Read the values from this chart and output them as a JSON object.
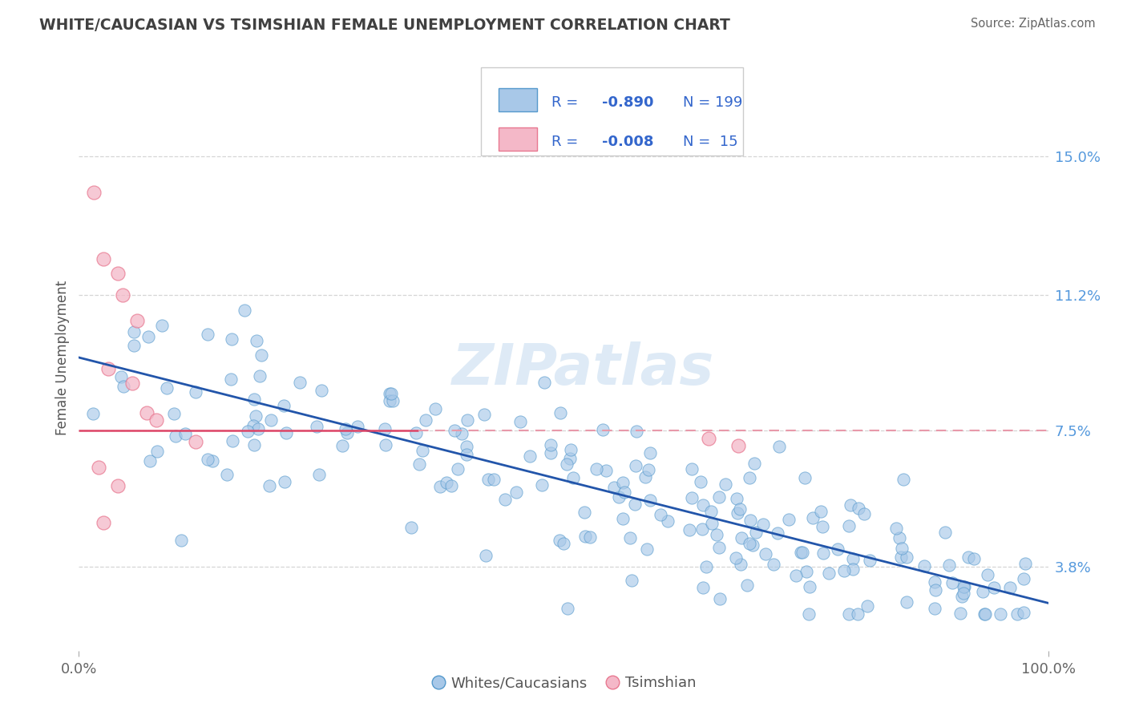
{
  "title": "WHITE/CAUCASIAN VS TSIMSHIAN FEMALE UNEMPLOYMENT CORRELATION CHART",
  "source": "Source: ZipAtlas.com",
  "ylabel": "Female Unemployment",
  "ytick_labels": [
    "3.8%",
    "7.5%",
    "11.2%",
    "15.0%"
  ],
  "ytick_values": [
    3.8,
    7.5,
    11.2,
    15.0
  ],
  "xtick_labels": [
    "0.0%",
    "100.0%"
  ],
  "xlim": [
    0,
    100
  ],
  "ylim": [
    1.5,
    17.5
  ],
  "blue_dot_color": "#a8c8e8",
  "blue_dot_edge": "#5599cc",
  "pink_dot_color": "#f4b8c8",
  "pink_dot_edge": "#e87890",
  "line_blue_color": "#2255aa",
  "line_pink_solid_color": "#dd4466",
  "line_pink_dash_color": "#e899aa",
  "watermark_text": "ZIPatlas",
  "watermark_color": "#c8ddf0",
  "title_color": "#404040",
  "right_tick_color": "#5599dd",
  "legend_text_color": "#3366cc",
  "blue_line_x0": 0,
  "blue_line_y0": 9.5,
  "blue_line_x1": 100,
  "blue_line_y1": 2.8,
  "pink_line_y": 7.5,
  "pink_solid_xmax": 0.35,
  "source_color": "#666666"
}
